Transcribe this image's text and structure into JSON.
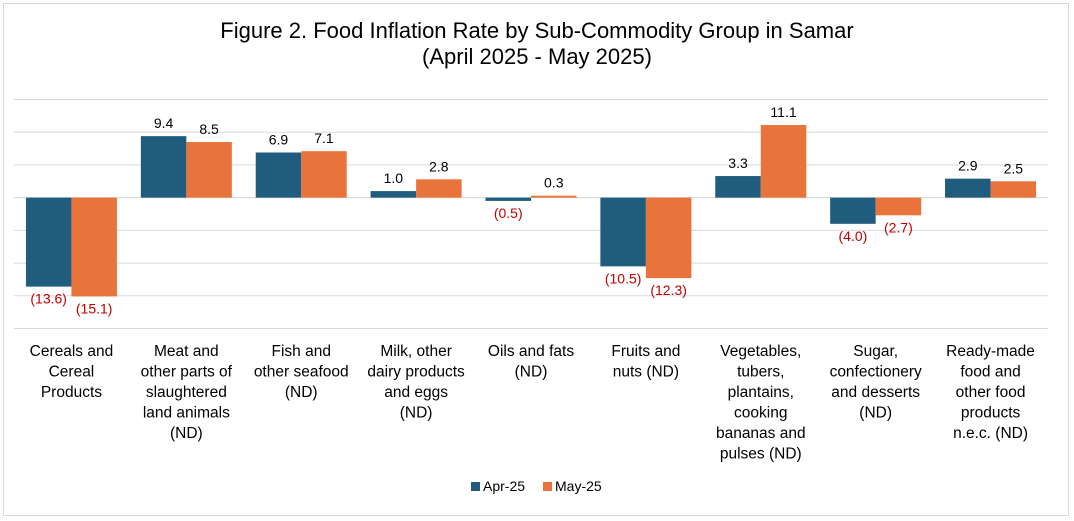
{
  "chart_data": {
    "type": "bar",
    "title": "Figure 2. Food Inflation Rate by Sub-Commodity Group in Samar",
    "subtitle": "(April 2025 - May 2025)",
    "categories": [
      "Cereals and Cereal Products",
      "Meat and other parts of slaughtered land animals (ND)",
      "Fish and other seafood (ND)",
      "Milk, other dairy products and eggs (ND)",
      "Oils and fats (ND)",
      "Fruits and nuts (ND)",
      "Vegetables, tubers, plantains, cooking bananas and pulses (ND)",
      "Sugar, confectionery and desserts (ND)",
      "Ready-made food and other food products n.e.c. (ND)"
    ],
    "category_lines": [
      [
        "Cereals and",
        "Cereal",
        "Products"
      ],
      [
        "Meat and",
        "other parts of",
        "slaughtered",
        "land animals",
        "(ND)"
      ],
      [
        "Fish and",
        "other seafood",
        "(ND)"
      ],
      [
        "Milk, other",
        "dairy products",
        "and eggs",
        "(ND)"
      ],
      [
        "Oils and fats",
        "(ND)"
      ],
      [
        "Fruits and",
        "nuts (ND)"
      ],
      [
        "Vegetables,",
        "tubers,",
        "plantains,",
        "cooking",
        "bananas and",
        "pulses (ND)"
      ],
      [
        "Sugar,",
        "confectionery",
        "and desserts",
        "(ND)"
      ],
      [
        "Ready-made",
        "food and",
        "other food",
        "products",
        "n.e.c. (ND)"
      ]
    ],
    "series": [
      {
        "name": "Apr-25",
        "color": "#1f5c7e",
        "values": [
          -13.6,
          9.4,
          6.9,
          1.0,
          -0.5,
          -10.5,
          3.3,
          -4.0,
          2.9
        ],
        "labels": [
          "(13.6)",
          "9.4",
          "6.9",
          "1.0",
          "(0.5)",
          "(10.5)",
          "3.3",
          "(4.0)",
          "2.9"
        ]
      },
      {
        "name": "May-25",
        "color": "#e8743b",
        "values": [
          -15.1,
          8.5,
          7.1,
          2.8,
          0.3,
          -12.3,
          11.1,
          -2.7,
          2.5
        ],
        "labels": [
          "(15.1)",
          "8.5",
          "7.1",
          "2.8",
          "0.3",
          "(12.3)",
          "11.1",
          "(2.7)",
          "2.5"
        ]
      }
    ],
    "ylim": [
      -20,
      15
    ],
    "gridlines": [
      -20,
      -15,
      -10,
      -5,
      0,
      5,
      10,
      15
    ],
    "grid": true,
    "legend_position": "bottom",
    "negative_label_color": "#c00000",
    "positive_label_color": "#000000"
  }
}
